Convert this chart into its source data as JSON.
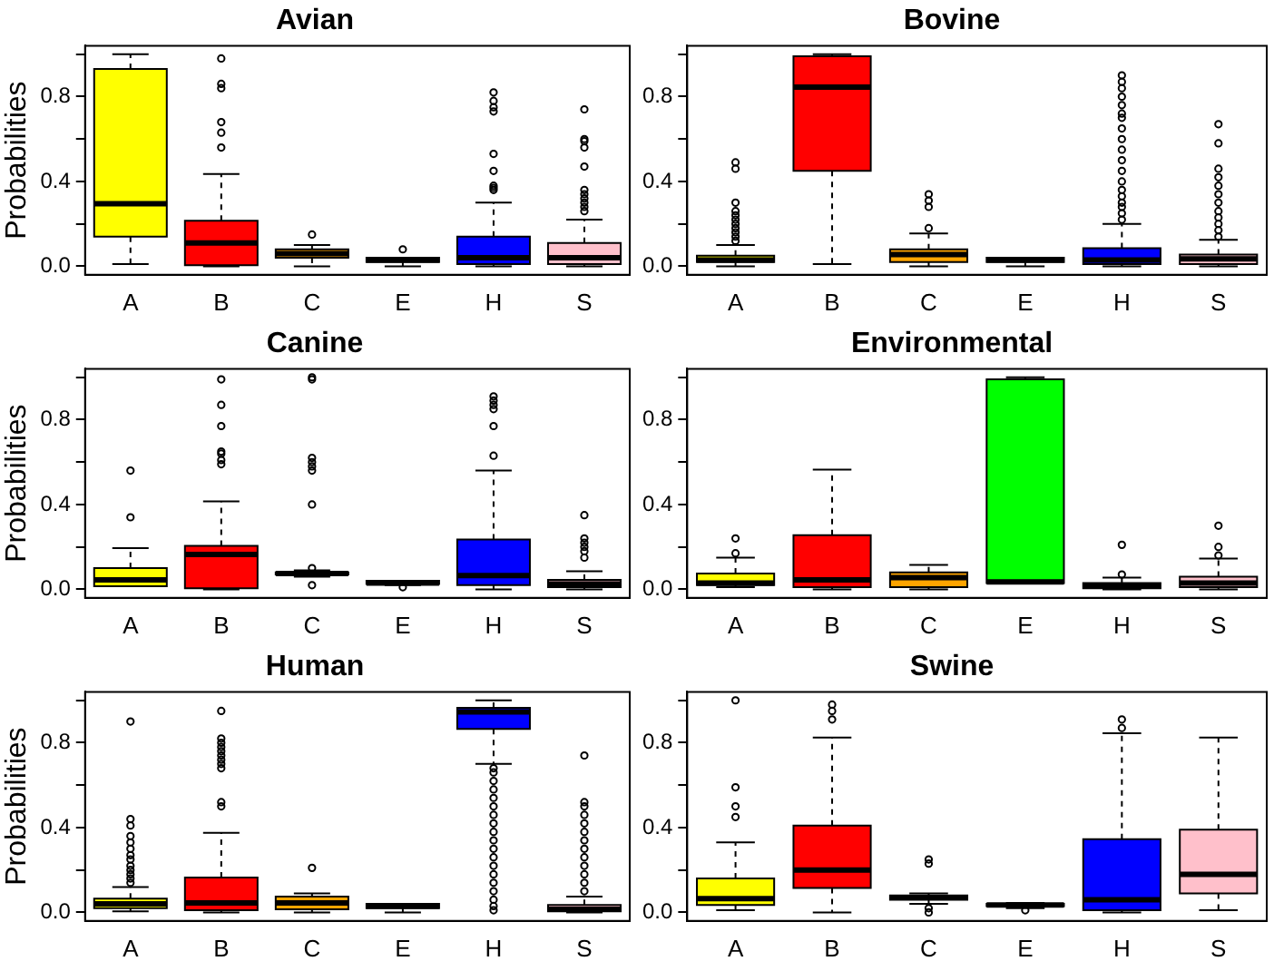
{
  "chart_data": [
    {
      "type": "box",
      "title": "Avian",
      "ylabel": "Probabilities",
      "categories": [
        "A",
        "B",
        "C",
        "E",
        "H",
        "S"
      ],
      "colors": [
        "#ffff00",
        "#ff0000",
        "#ffa500",
        "#00ff00",
        "#0000ff",
        "#ffc0cb"
      ],
      "ylim": [
        -0.04,
        1.04
      ],
      "yticks": [
        {
          "value": 0,
          "label": "0.0"
        },
        {
          "value": 0.2,
          "label": null
        },
        {
          "value": 0.4,
          "label": "0.4"
        },
        {
          "value": 0.6,
          "label": null
        },
        {
          "value": 0.8,
          "label": "0.8"
        },
        {
          "value": 1,
          "label": null
        }
      ],
      "grid": false,
      "boxes": [
        {
          "low": 0.01,
          "q1": 0.14,
          "median": 0.295,
          "q3": 0.93,
          "high": 1.0
        },
        {
          "low": 0,
          "q1": 0.005,
          "median": 0.11,
          "q3": 0.215,
          "high": 0.435,
          "outliers": [
            0.56,
            0.63,
            0.68,
            0.84,
            0.86,
            0.98
          ]
        },
        {
          "low": 0,
          "q1": 0.04,
          "median": 0.06,
          "q3": 0.08,
          "high": 0.1,
          "outliers": [
            0.15
          ]
        },
        {
          "low": 0,
          "q1": 0.02,
          "median": 0.03,
          "q3": 0.04,
          "high": 0.04,
          "outliers": [
            0.08
          ]
        },
        {
          "low": 0,
          "q1": 0.01,
          "median": 0.04,
          "q3": 0.14,
          "high": 0.3,
          "outliers": [
            0.36,
            0.37,
            0.38,
            0.45,
            0.53,
            0.73,
            0.75,
            0.78,
            0.82
          ]
        },
        {
          "low": 0,
          "q1": 0.01,
          "median": 0.04,
          "q3": 0.11,
          "high": 0.22,
          "outliers": [
            0.26,
            0.28,
            0.3,
            0.32,
            0.34,
            0.36,
            0.47,
            0.56,
            0.59,
            0.6,
            0.74
          ]
        }
      ]
    },
    {
      "type": "box",
      "title": "Bovine",
      "categories": [
        "A",
        "B",
        "C",
        "E",
        "H",
        "S"
      ],
      "colors": [
        "#ffff00",
        "#ff0000",
        "#ffa500",
        "#00ff00",
        "#0000ff",
        "#ffc0cb"
      ],
      "ylim": [
        -0.04,
        1.04
      ],
      "yticks": [
        {
          "value": 0,
          "label": "0.0"
        },
        {
          "value": 0.2,
          "label": null
        },
        {
          "value": 0.4,
          "label": "0.4"
        },
        {
          "value": 0.6,
          "label": null
        },
        {
          "value": 0.8,
          "label": "0.8"
        },
        {
          "value": 1,
          "label": null
        }
      ],
      "grid": false,
      "boxes": [
        {
          "low": 0,
          "q1": 0.02,
          "median": 0.03,
          "q3": 0.05,
          "high": 0.1,
          "outliers": [
            0.12,
            0.14,
            0.16,
            0.18,
            0.2,
            0.22,
            0.24,
            0.26,
            0.3,
            0.46,
            0.49
          ]
        },
        {
          "low": 0.01,
          "q1": 0.45,
          "median": 0.845,
          "q3": 0.99,
          "high": 1.0
        },
        {
          "low": 0,
          "q1": 0.02,
          "median": 0.055,
          "q3": 0.08,
          "high": 0.155,
          "outliers": [
            0.18,
            0.28,
            0.31,
            0.34
          ]
        },
        {
          "low": 0,
          "q1": 0.02,
          "median": 0.03,
          "q3": 0.04,
          "high": 0.04
        },
        {
          "low": 0,
          "q1": 0.01,
          "median": 0.03,
          "q3": 0.085,
          "high": 0.2,
          "outliers": [
            0.22,
            0.25,
            0.28,
            0.3,
            0.33,
            0.36,
            0.4,
            0.45,
            0.5,
            0.55,
            0.6,
            0.65,
            0.7,
            0.72,
            0.76,
            0.8,
            0.84,
            0.87,
            0.9
          ]
        },
        {
          "low": 0,
          "q1": 0.01,
          "median": 0.035,
          "q3": 0.055,
          "high": 0.125,
          "outliers": [
            0.14,
            0.17,
            0.2,
            0.23,
            0.26,
            0.3,
            0.34,
            0.38,
            0.42,
            0.46,
            0.58,
            0.67
          ]
        }
      ]
    },
    {
      "type": "box",
      "title": "Canine",
      "ylabel": "Probabilities",
      "categories": [
        "A",
        "B",
        "C",
        "E",
        "H",
        "S"
      ],
      "colors": [
        "#ffff00",
        "#ff0000",
        "#ffa500",
        "#00ff00",
        "#0000ff",
        "#ffc0cb"
      ],
      "ylim": [
        -0.04,
        1.04
      ],
      "yticks": [
        {
          "value": 0,
          "label": "0.0"
        },
        {
          "value": 0.2,
          "label": null
        },
        {
          "value": 0.4,
          "label": "0.4"
        },
        {
          "value": 0.6,
          "label": null
        },
        {
          "value": 0.8,
          "label": "0.8"
        },
        {
          "value": 1,
          "label": null
        }
      ],
      "grid": false,
      "boxes": [
        {
          "low": 0.015,
          "q1": 0.015,
          "median": 0.045,
          "q3": 0.1,
          "high": 0.195,
          "outliers": [
            0.34,
            0.56
          ]
        },
        {
          "low": 0,
          "q1": 0.005,
          "median": 0.165,
          "q3": 0.205,
          "high": 0.415,
          "outliers": [
            0.59,
            0.61,
            0.64,
            0.65,
            0.77,
            0.87,
            0.99
          ]
        },
        {
          "low": 0.06,
          "q1": 0.07,
          "median": 0.075,
          "q3": 0.08,
          "high": 0.09,
          "outliers": [
            0.02,
            0.1,
            0.4,
            0.56,
            0.58,
            0.6,
            0.62,
            0.99,
            1.0
          ]
        },
        {
          "low": 0.02,
          "q1": 0.025,
          "median": 0.03,
          "q3": 0.04,
          "high": 0.04,
          "outliers": [
            0.01
          ]
        },
        {
          "low": 0,
          "q1": 0.02,
          "median": 0.065,
          "q3": 0.235,
          "high": 0.56,
          "outliers": [
            0.63,
            0.77,
            0.85,
            0.87,
            0.89,
            0.91
          ]
        },
        {
          "low": 0,
          "q1": 0.01,
          "median": 0.025,
          "q3": 0.045,
          "high": 0.085,
          "outliers": [
            0.15,
            0.18,
            0.2,
            0.22,
            0.24,
            0.35
          ]
        }
      ]
    },
    {
      "type": "box",
      "title": "Environmental",
      "categories": [
        "A",
        "B",
        "C",
        "E",
        "H",
        "S"
      ],
      "colors": [
        "#ffff00",
        "#ff0000",
        "#ffa500",
        "#00ff00",
        "#0000ff",
        "#ffc0cb"
      ],
      "ylim": [
        -0.04,
        1.04
      ],
      "yticks": [
        {
          "value": 0,
          "label": "0.0"
        },
        {
          "value": 0.2,
          "label": null
        },
        {
          "value": 0.4,
          "label": "0.4"
        },
        {
          "value": 0.6,
          "label": null
        },
        {
          "value": 0.8,
          "label": "0.8"
        },
        {
          "value": 1,
          "label": null
        }
      ],
      "grid": false,
      "boxes": [
        {
          "low": 0.01,
          "q1": 0.02,
          "median": 0.03,
          "q3": 0.075,
          "high": 0.15,
          "outliers": [
            0.17,
            0.24
          ]
        },
        {
          "low": 0,
          "q1": 0.01,
          "median": 0.045,
          "q3": 0.255,
          "high": 0.565
        },
        {
          "low": 0,
          "q1": 0.01,
          "median": 0.055,
          "q3": 0.08,
          "high": 0.115
        },
        {
          "low": 0.03,
          "q1": 0.03,
          "median": 0.035,
          "q3": 0.99,
          "high": 1.0
        },
        {
          "low": 0,
          "q1": 0.005,
          "median": 0.015,
          "q3": 0.03,
          "high": 0.055,
          "outliers": [
            0.07,
            0.21
          ]
        },
        {
          "low": 0,
          "q1": 0.01,
          "median": 0.03,
          "q3": 0.06,
          "high": 0.145,
          "outliers": [
            0.16,
            0.2,
            0.3
          ]
        }
      ]
    },
    {
      "type": "box",
      "title": "Human",
      "ylabel": "Probabilities",
      "categories": [
        "A",
        "B",
        "C",
        "E",
        "H",
        "S"
      ],
      "colors": [
        "#ffff00",
        "#ff0000",
        "#ffa500",
        "#00ff00",
        "#0000ff",
        "#ffc0cb"
      ],
      "ylim": [
        -0.04,
        1.04
      ],
      "yticks": [
        {
          "value": 0,
          "label": "0.0"
        },
        {
          "value": 0.2,
          "label": null
        },
        {
          "value": 0.4,
          "label": "0.4"
        },
        {
          "value": 0.6,
          "label": null
        },
        {
          "value": 0.8,
          "label": "0.8"
        },
        {
          "value": 1,
          "label": null
        }
      ],
      "grid": false,
      "boxes": [
        {
          "low": 0.005,
          "q1": 0.02,
          "median": 0.04,
          "q3": 0.065,
          "high": 0.12,
          "outliers": [
            0.14,
            0.16,
            0.18,
            0.2,
            0.22,
            0.25,
            0.27,
            0.3,
            0.33,
            0.36,
            0.41,
            0.44,
            0.9
          ]
        },
        {
          "low": 0,
          "q1": 0.01,
          "median": 0.045,
          "q3": 0.165,
          "high": 0.375,
          "outliers": [
            0.5,
            0.52,
            0.68,
            0.7,
            0.72,
            0.74,
            0.76,
            0.78,
            0.8,
            0.82,
            0.95
          ]
        },
        {
          "low": 0,
          "q1": 0.015,
          "median": 0.045,
          "q3": 0.075,
          "high": 0.09,
          "outliers": [
            0.21
          ]
        },
        {
          "low": 0,
          "q1": 0.02,
          "median": 0.03,
          "q3": 0.04,
          "high": 0.04
        },
        {
          "low": 0.7,
          "q1": 0.865,
          "median": 0.945,
          "q3": 0.965,
          "high": 1.0,
          "outliers": [
            0.01,
            0.03,
            0.06,
            0.1,
            0.14,
            0.18,
            0.22,
            0.26,
            0.3,
            0.34,
            0.38,
            0.42,
            0.46,
            0.5,
            0.54,
            0.58,
            0.62,
            0.66,
            0.68
          ]
        },
        {
          "low": 0,
          "q1": 0.005,
          "median": 0.015,
          "q3": 0.035,
          "high": 0.075,
          "outliers": [
            0.1,
            0.14,
            0.18,
            0.22,
            0.26,
            0.3,
            0.34,
            0.38,
            0.42,
            0.46,
            0.5,
            0.52,
            0.74
          ]
        }
      ]
    },
    {
      "type": "box",
      "title": "Swine",
      "categories": [
        "A",
        "B",
        "C",
        "E",
        "H",
        "S"
      ],
      "colors": [
        "#ffff00",
        "#ff0000",
        "#ffa500",
        "#00ff00",
        "#0000ff",
        "#ffc0cb"
      ],
      "ylim": [
        -0.04,
        1.04
      ],
      "yticks": [
        {
          "value": 0,
          "label": "0.0"
        },
        {
          "value": 0.2,
          "label": null
        },
        {
          "value": 0.4,
          "label": "0.4"
        },
        {
          "value": 0.6,
          "label": null
        },
        {
          "value": 0.8,
          "label": "0.8"
        },
        {
          "value": 1,
          "label": null
        }
      ],
      "grid": false,
      "boxes": [
        {
          "low": 0.01,
          "q1": 0.035,
          "median": 0.065,
          "q3": 0.16,
          "high": 0.33,
          "outliers": [
            0.45,
            0.5,
            0.59,
            1.0
          ]
        },
        {
          "low": 0,
          "q1": 0.115,
          "median": 0.2,
          "q3": 0.41,
          "high": 0.825,
          "outliers": [
            0.91,
            0.95,
            0.98
          ]
        },
        {
          "low": 0.04,
          "q1": 0.06,
          "median": 0.07,
          "q3": 0.08,
          "high": 0.09,
          "outliers": [
            0,
            0.02,
            0.23,
            0.25
          ]
        },
        {
          "low": 0.02,
          "q1": 0.03,
          "median": 0.035,
          "q3": 0.04,
          "high": 0.045,
          "outliers": [
            0.01
          ]
        },
        {
          "low": 0,
          "q1": 0.01,
          "median": 0.06,
          "q3": 0.345,
          "high": 0.845,
          "outliers": [
            0.87,
            0.91
          ]
        },
        {
          "low": 0.01,
          "q1": 0.09,
          "median": 0.18,
          "q3": 0.39,
          "high": 0.825
        }
      ]
    }
  ]
}
